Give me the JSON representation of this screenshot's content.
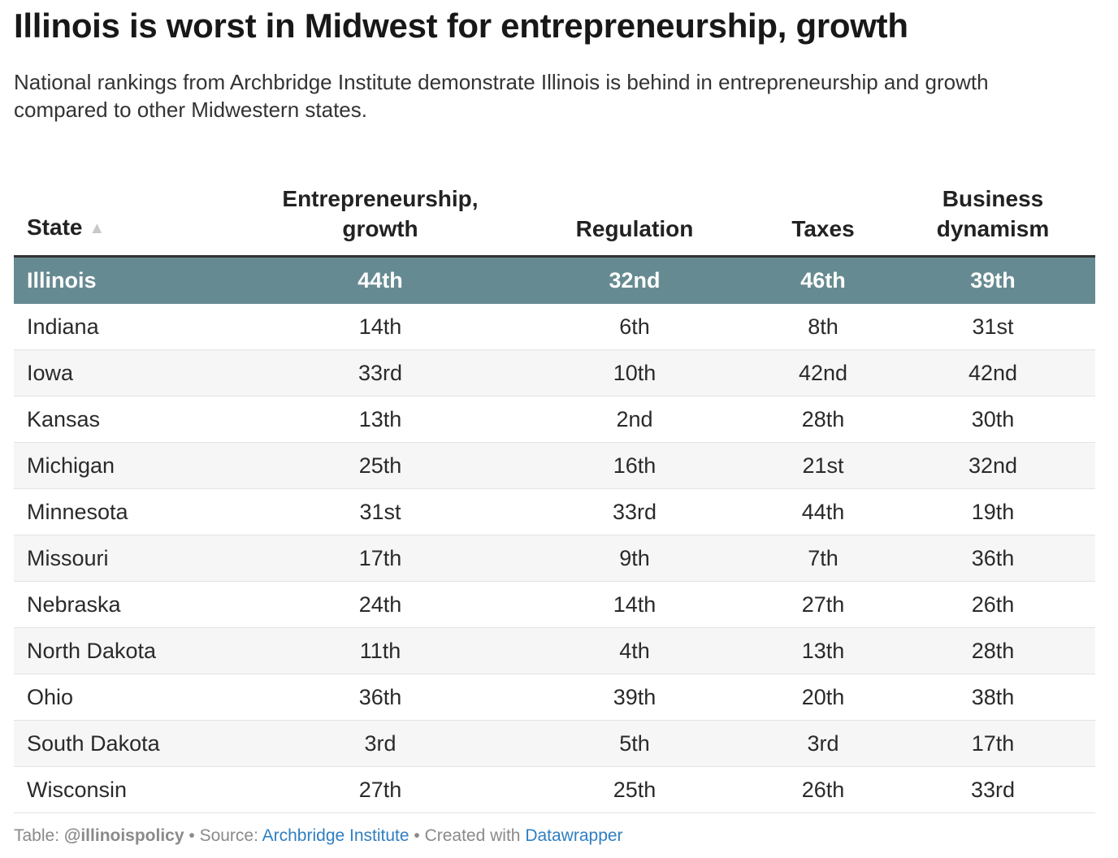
{
  "title": "Illinois is worst in Midwest for entrepreneurship, growth",
  "subtitle": "National rankings from Archbridge Institute demonstrate Illinois is behind in entrepreneurship and growth compared to other Midwestern states.",
  "colors": {
    "highlight_row": "#668a91",
    "link": "#2f7fc1",
    "stripe": "#f6f6f6"
  },
  "table": {
    "headers": {
      "state": "State",
      "entrepreneurship_line1": "Entrepreneurship,",
      "entrepreneurship_line2": "growth",
      "regulation": "Regulation",
      "taxes": "Taxes",
      "business_line1": "Business",
      "business_line2": "dynamism"
    },
    "sort_icon": "▲"
  },
  "chart_data": {
    "type": "table",
    "title": "Illinois is worst in Midwest for entrepreneurship, growth",
    "subtitle": "National rankings from Archbridge Institute demonstrate Illinois is behind in entrepreneurship and growth compared to other Midwestern states.",
    "columns": [
      "State",
      "Entrepreneurship, growth",
      "Regulation",
      "Taxes",
      "Business dynamism"
    ],
    "highlighted_row": "Illinois",
    "rows": [
      [
        "Illinois",
        "44th",
        "32nd",
        "46th",
        "39th"
      ],
      [
        "Indiana",
        "14th",
        "6th",
        "8th",
        "31st"
      ],
      [
        "Iowa",
        "33rd",
        "10th",
        "42nd",
        "42nd"
      ],
      [
        "Kansas",
        "13th",
        "2nd",
        "28th",
        "30th"
      ],
      [
        "Michigan",
        "25th",
        "16th",
        "21st",
        "32nd"
      ],
      [
        "Minnesota",
        "31st",
        "33rd",
        "44th",
        "19th"
      ],
      [
        "Missouri",
        "17th",
        "9th",
        "7th",
        "36th"
      ],
      [
        "Nebraska",
        "24th",
        "14th",
        "27th",
        "26th"
      ],
      [
        "North Dakota",
        "11th",
        "4th",
        "13th",
        "28th"
      ],
      [
        "Ohio",
        "36th",
        "39th",
        "20th",
        "38th"
      ],
      [
        "South Dakota",
        "3rd",
        "5th",
        "3rd",
        "17th"
      ],
      [
        "Wisconsin",
        "27th",
        "25th",
        "26th",
        "33rd"
      ]
    ]
  },
  "footer": {
    "table_prefix": "Table: ",
    "table_credit": "@illinoispolicy",
    "sep1": " • Source: ",
    "source": "Archbridge Institute",
    "sep2": " • Created with ",
    "tool": "Datawrapper"
  }
}
